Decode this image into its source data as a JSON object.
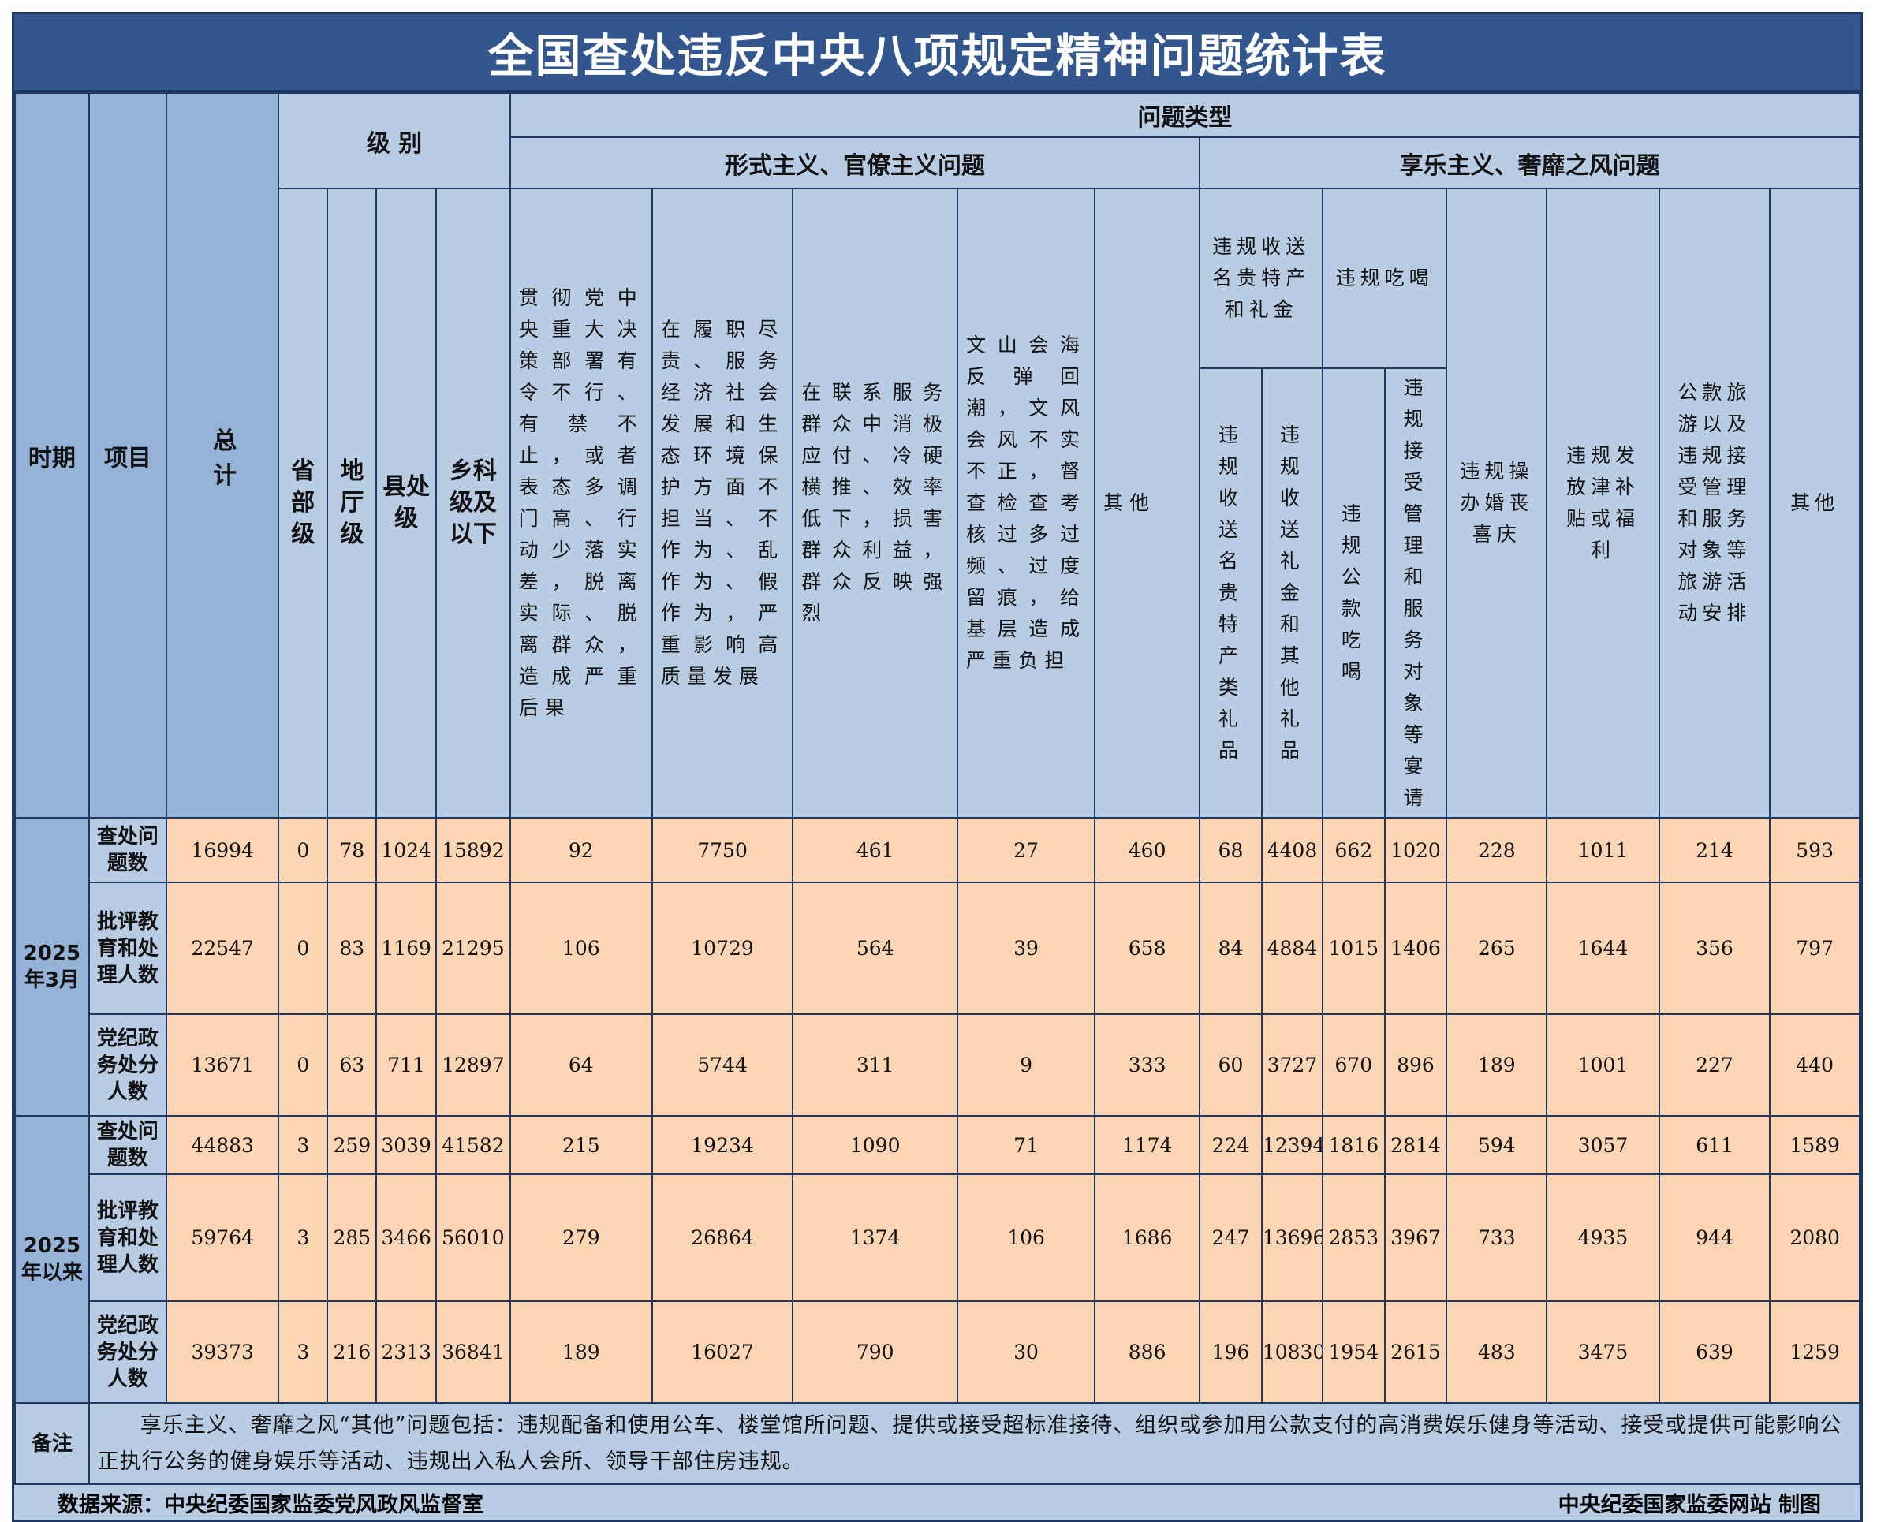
{
  "title": "全国查处违反中央八项规定精神问题统计表",
  "header": {
    "period": "时期",
    "item": "项目",
    "total": "总计",
    "level": "级 别",
    "levels": [
      "省部级",
      "地厅级",
      "县处级",
      "乡科级及以下"
    ],
    "problem_type": "问题类型",
    "formalism": {
      "title": "形式主义、官僚主义问题",
      "columns": [
        "贯彻党中央重大决策部署有令不行、有禁不止，或者表态多调门高、行动少落实差，脱离实际、脱离群众，造成严重后果",
        "在履职尽责、服务经济社会发展和生态环境保护方面不担当、不作为、乱作为、假作为，严重影响高质量发展",
        "在联系服务群众中消极应付、冷硬横推、效率低下，损害群众利益，群众反映强烈",
        "文山会海反弹回潮，文风会风不实不正，督查检查考核过多过频、过度留痕，给基层造成严重负担",
        "其他"
      ]
    },
    "hedonism": {
      "title": "享乐主义、奢靡之风问题",
      "gifts": {
        "title": "违规收送名贵特产和礼金",
        "columns": [
          "违规收送名贵特产类礼品",
          "违规收送礼金和其他礼品"
        ]
      },
      "dining": {
        "title": "违规吃喝",
        "columns": [
          "违规公款吃喝",
          "违规接受管理和服务对象等宴请"
        ]
      },
      "columns": [
        "违规操办婚丧喜庆",
        "违规发放津补贴或福利",
        "公款旅游以及违规接受管理和服务对象等旅游活动安排",
        "其他"
      ]
    }
  },
  "periods": [
    {
      "label": "2025年3月",
      "rows": [
        {
          "item": "查处问题数",
          "values": [
            16994,
            0,
            78,
            1024,
            15892,
            92,
            7750,
            461,
            27,
            460,
            68,
            4408,
            662,
            1020,
            228,
            1011,
            214,
            593
          ]
        },
        {
          "item": "批评教育和处理人数",
          "values": [
            22547,
            0,
            83,
            1169,
            21295,
            106,
            10729,
            564,
            39,
            658,
            84,
            4884,
            1015,
            1406,
            265,
            1644,
            356,
            797
          ]
        },
        {
          "item": "党纪政务处分人数",
          "values": [
            13671,
            0,
            63,
            711,
            12897,
            64,
            5744,
            311,
            9,
            333,
            60,
            3727,
            670,
            896,
            189,
            1001,
            227,
            440
          ]
        }
      ]
    },
    {
      "label": "2025年以来",
      "rows": [
        {
          "item": "查处问题数",
          "values": [
            44883,
            3,
            259,
            3039,
            41582,
            215,
            19234,
            1090,
            71,
            1174,
            224,
            12394,
            1816,
            2814,
            594,
            3057,
            611,
            1589
          ]
        },
        {
          "item": "批评教育和处理人数",
          "values": [
            59764,
            3,
            285,
            3466,
            56010,
            279,
            26864,
            1374,
            106,
            1686,
            247,
            13696,
            2853,
            3967,
            733,
            4935,
            944,
            2080
          ]
        },
        {
          "item": "党纪政务处分人数",
          "values": [
            39373,
            3,
            216,
            2313,
            36841,
            189,
            16027,
            790,
            30,
            886,
            196,
            10830,
            1954,
            2615,
            483,
            3475,
            639,
            1259
          ]
        }
      ]
    }
  ],
  "note": {
    "label": "备注",
    "text": "享乐主义、奢靡之风“其他”问题包括：违规配备和使用公车、楼堂馆所问题、提供或接受超标准接待、组织或参加用公款支付的高消费娱乐健身等活动、接受或提供可能影响公正执行公务的健身娱乐等活动、违规出入私人会所、领导干部住房违规。"
  },
  "footer": {
    "source": "数据来源：中央纪委国家监委党风政风监督室",
    "credit": "中央纪委国家监委网站 制图"
  }
}
